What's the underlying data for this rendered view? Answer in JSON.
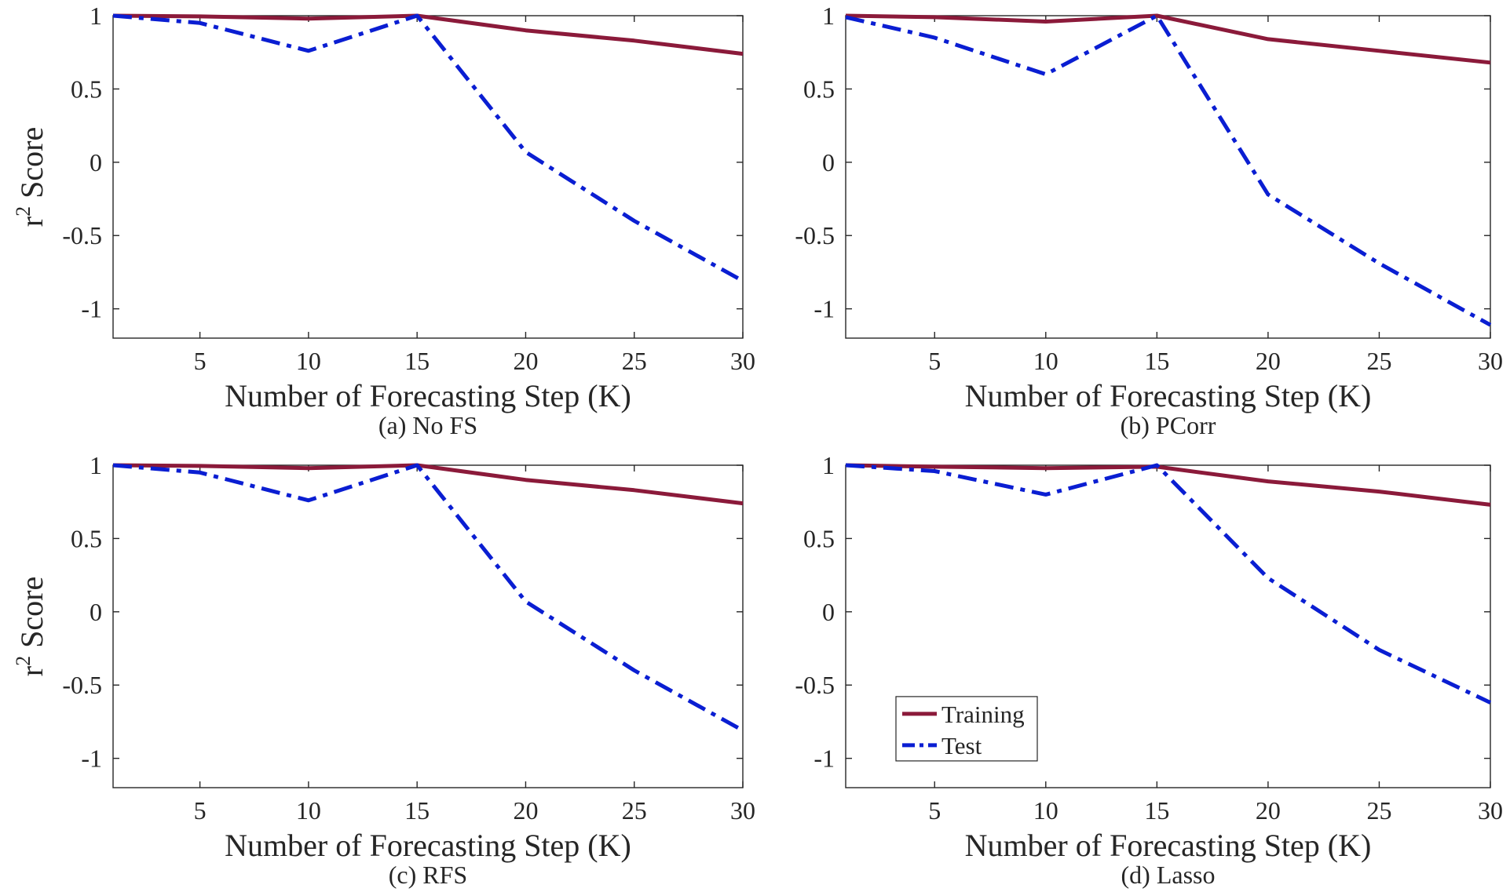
{
  "colors": {
    "training": "#8B1A3A",
    "test": "#0A1ED2",
    "axes": "#262626"
  },
  "legend": {
    "placement": "bottom-left",
    "panel": 3,
    "entries": [
      "Training",
      "Test"
    ]
  },
  "chart_data": [
    {
      "type": "line",
      "caption": "(a) No FS",
      "xlabel": "Number of Forecasting Step (K)",
      "ylabel": "Score",
      "ylabel_prefix": "r",
      "ylabel_sup": "2",
      "xlim": [
        1,
        30
      ],
      "ylim": [
        -1.2,
        1
      ],
      "xticks": [
        5,
        10,
        15,
        20,
        25,
        30
      ],
      "yticks": [
        -1,
        -0.5,
        0,
        0.5,
        1
      ],
      "grid": false,
      "x": [
        1,
        5,
        10,
        15,
        20,
        25,
        30
      ],
      "series": [
        {
          "name": "Training",
          "style": "solid",
          "values": [
            1.0,
            0.995,
            0.98,
            1.0,
            0.9,
            0.83,
            0.74
          ]
        },
        {
          "name": "Test",
          "style": "dashdot",
          "values": [
            1.0,
            0.95,
            0.76,
            1.0,
            0.07,
            -0.4,
            -0.81
          ]
        }
      ]
    },
    {
      "type": "line",
      "caption": "(b) PCorr",
      "xlabel": "Number of Forecasting Step (K)",
      "ylabel": "",
      "xlim": [
        1,
        30
      ],
      "ylim": [
        -1.2,
        1
      ],
      "xticks": [
        5,
        10,
        15,
        20,
        25,
        30
      ],
      "yticks": [
        -1,
        -0.5,
        0,
        0.5,
        1
      ],
      "grid": false,
      "x": [
        1,
        5,
        10,
        15,
        20,
        25,
        30
      ],
      "series": [
        {
          "name": "Training",
          "style": "solid",
          "values": [
            1.0,
            0.99,
            0.96,
            1.0,
            0.84,
            0.76,
            0.68
          ]
        },
        {
          "name": "Test",
          "style": "dashdot",
          "values": [
            0.99,
            0.85,
            0.6,
            1.0,
            -0.22,
            -0.69,
            -1.11
          ]
        }
      ]
    },
    {
      "type": "line",
      "caption": "(c) RFS",
      "xlabel": "Number of Forecasting Step (K)",
      "ylabel": "Score",
      "ylabel_prefix": "r",
      "ylabel_sup": "2",
      "xlim": [
        1,
        30
      ],
      "ylim": [
        -1.2,
        1
      ],
      "xticks": [
        5,
        10,
        15,
        20,
        25,
        30
      ],
      "yticks": [
        -1,
        -0.5,
        0,
        0.5,
        1
      ],
      "grid": false,
      "x": [
        1,
        5,
        10,
        15,
        20,
        25,
        30
      ],
      "series": [
        {
          "name": "Training",
          "style": "solid",
          "values": [
            1.0,
            0.995,
            0.98,
            1.0,
            0.9,
            0.83,
            0.74
          ]
        },
        {
          "name": "Test",
          "style": "dashdot",
          "values": [
            1.0,
            0.95,
            0.76,
            1.0,
            0.07,
            -0.4,
            -0.81
          ]
        }
      ]
    },
    {
      "type": "line",
      "caption": "(d) Lasso",
      "xlabel": "Number of Forecasting Step (K)",
      "ylabel": "",
      "xlim": [
        1,
        30
      ],
      "ylim": [
        -1.2,
        1
      ],
      "xticks": [
        5,
        10,
        15,
        20,
        25,
        30
      ],
      "yticks": [
        -1,
        -0.5,
        0,
        0.5,
        1
      ],
      "grid": false,
      "x": [
        1,
        5,
        10,
        15,
        20,
        25,
        30
      ],
      "series": [
        {
          "name": "Training",
          "style": "solid",
          "values": [
            1.0,
            0.99,
            0.98,
            0.99,
            0.89,
            0.82,
            0.73
          ]
        },
        {
          "name": "Test",
          "style": "dashdot",
          "values": [
            1.0,
            0.96,
            0.8,
            1.0,
            0.23,
            -0.26,
            -0.62
          ]
        }
      ]
    }
  ]
}
